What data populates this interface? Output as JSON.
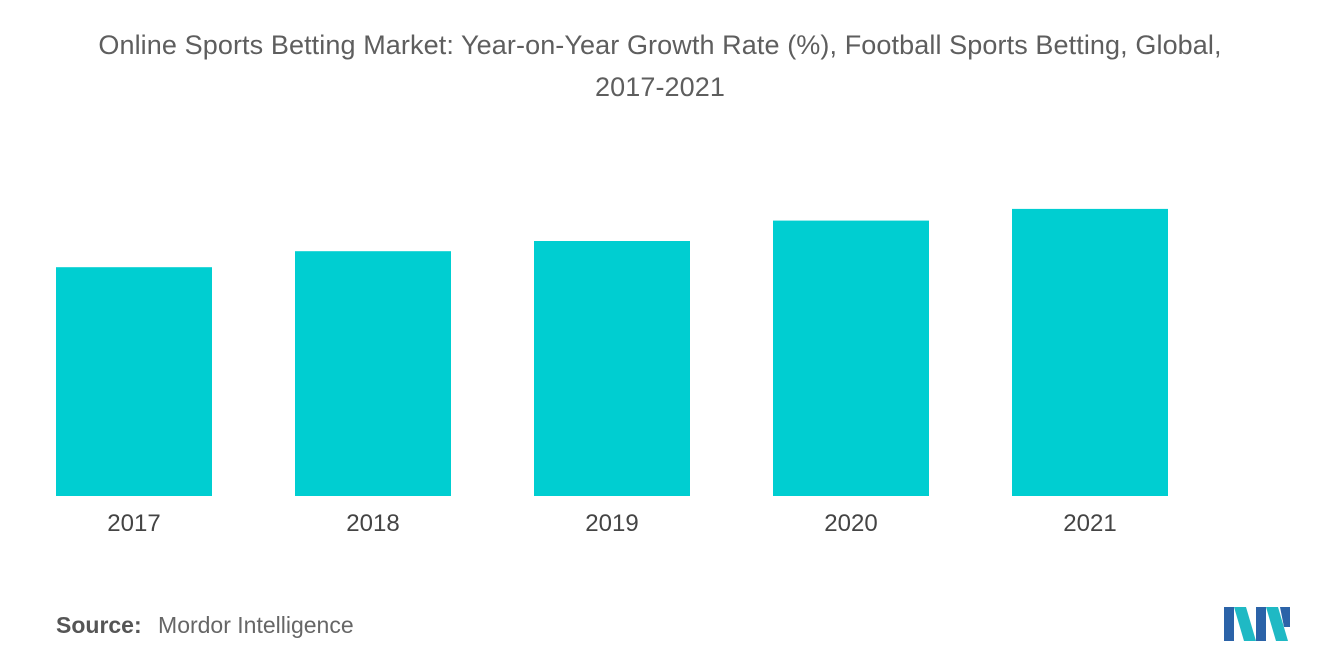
{
  "title_line1": "Online Sports Betting Market: Year-on-Year Growth Rate (%), Football Sports Betting, Global,",
  "title_line2": "2017-2021",
  "source": {
    "label": "Source:",
    "value": "Mordor Intelligence"
  },
  "logo": {
    "icon": "mordor-intelligence-logo",
    "colors": [
      "#2b63a8",
      "#1fb9c4"
    ]
  },
  "chart_data": {
    "type": "bar",
    "categories": [
      "2017",
      "2018",
      "2019",
      "2020",
      "2021"
    ],
    "values": [
      7.85,
      8.4,
      8.75,
      9.45,
      9.85
    ],
    "ylim": [
      0,
      10.5
    ],
    "xlabel": "",
    "ylabel": "",
    "grid": false,
    "legend": "none",
    "bar_color": "#00ced1"
  }
}
